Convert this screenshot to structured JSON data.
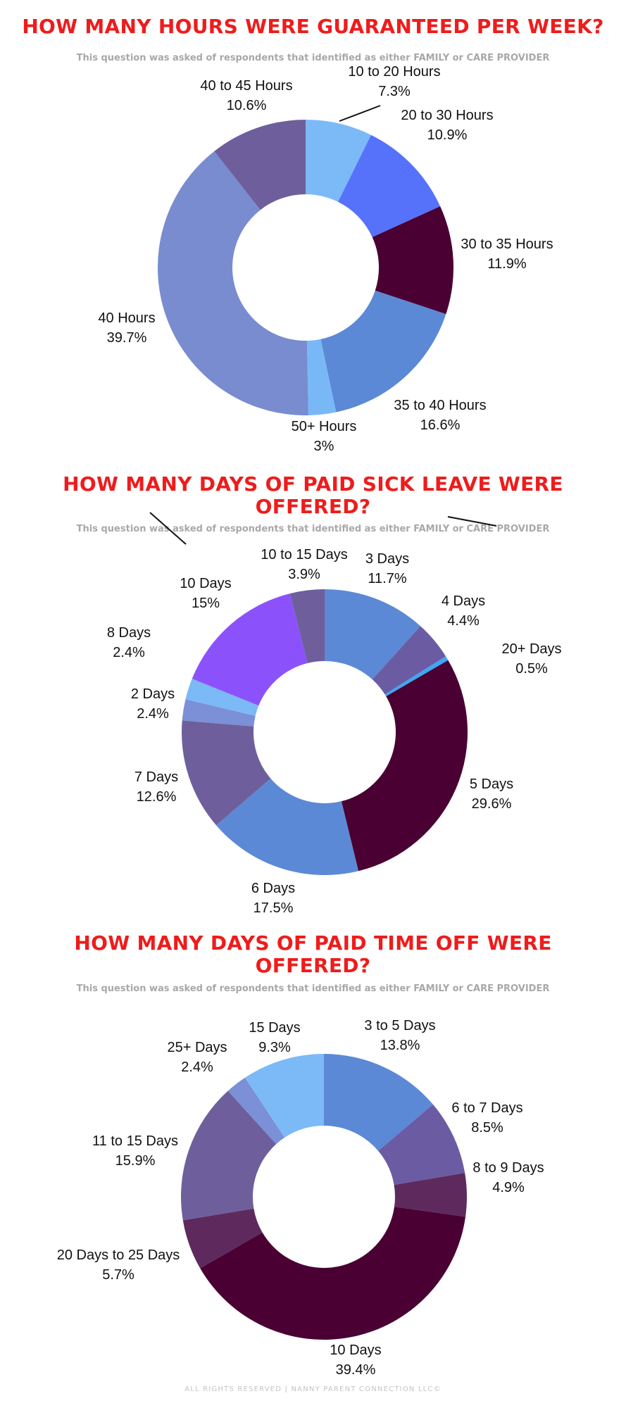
{
  "chart_data": [
    {
      "type": "pie",
      "donut": true,
      "title": "HOW MANY HOURS WERE GUARANTEED PER WEEK?",
      "subtitle": "This question was asked of respondents that identified as either FAMILY or CARE PROVIDER",
      "slices": [
        {
          "label": "10 to 20 Hours",
          "value": 7.3,
          "display": "7.3%",
          "color": "#7cb9f7"
        },
        {
          "label": "20 to 30 Hours",
          "value": 10.9,
          "display": "10.9%",
          "color": "#5672fb"
        },
        {
          "label": "30 to 35 Hours",
          "value": 11.9,
          "display": "11.9%",
          "color": "#4a0033"
        },
        {
          "label": "35 to 40 Hours",
          "value": 16.6,
          "display": "16.6%",
          "color": "#5b89d6"
        },
        {
          "label": "50+ Hours",
          "value": 3,
          "display": "3%",
          "color": "#78b8f6"
        },
        {
          "label": "40 Hours",
          "value": 39.7,
          "display": "39.7%",
          "color": "#788ccf"
        },
        {
          "label": "40 to 45 Hours",
          "value": 10.6,
          "display": "10.6%",
          "color": "#6e5f9c"
        }
      ]
    },
    {
      "type": "pie",
      "donut": true,
      "title": "HOW MANY DAYS OF PAID SICK LEAVE WERE OFFERED?",
      "subtitle": "This question was asked of respondents that identified as either FAMILY or CARE PROVIDER",
      "slices": [
        {
          "label": "3 Days",
          "value": 11.7,
          "display": "11.7%",
          "color": "#5b89d6"
        },
        {
          "label": "4 Days",
          "value": 4.4,
          "display": "4.4%",
          "color": "#6b5ba3"
        },
        {
          "label": "20+ Days",
          "value": 0.5,
          "display": "0.5%",
          "color": "#3ea6f5"
        },
        {
          "label": "5 Days",
          "value": 29.6,
          "display": "29.6%",
          "color": "#4a0033"
        },
        {
          "label": "6 Days",
          "value": 17.5,
          "display": "17.5%",
          "color": "#5b89d6"
        },
        {
          "label": "7 Days",
          "value": 12.6,
          "display": "12.6%",
          "color": "#6e5f9c"
        },
        {
          "label": "2 Days",
          "value": 2.4,
          "display": "2.4%",
          "color": "#7b90d6"
        },
        {
          "label": "8 Days",
          "value": 2.4,
          "display": "2.4%",
          "color": "#7cb9f7"
        },
        {
          "label": "10 Days",
          "value": 15,
          "display": "15%",
          "color": "#8b52fb"
        },
        {
          "label": "10 to 15 Days",
          "value": 3.9,
          "display": "3.9%",
          "color": "#6e5f9c"
        }
      ]
    },
    {
      "type": "pie",
      "donut": true,
      "title": "HOW MANY DAYS OF PAID TIME OFF WERE OFFERED?",
      "subtitle": "This question was asked of respondents that identified as either FAMILY or CARE PROVIDER",
      "slices": [
        {
          "label": "3 to 5 Days",
          "value": 13.8,
          "display": "13.8%",
          "color": "#5b89d6"
        },
        {
          "label": "6 to 7 Days",
          "value": 8.5,
          "display": "8.5%",
          "color": "#6b5ba3"
        },
        {
          "label": "8 to 9 Days",
          "value": 4.9,
          "display": "4.9%",
          "color": "#5e2a5e"
        },
        {
          "label": "10 Days",
          "value": 39.4,
          "display": "39.4%",
          "color": "#4a0033"
        },
        {
          "label": "20 Days to 25 Days",
          "value": 5.7,
          "display": "5.7%",
          "color": "#5e2a5e"
        },
        {
          "label": "11 to 15 Days",
          "value": 15.9,
          "display": "15.9%",
          "color": "#6e5f9c"
        },
        {
          "label": "25+ Days",
          "value": 2.4,
          "display": "2.4%",
          "color": "#7b90d6"
        },
        {
          "label": "15 Days",
          "value": 9.3,
          "display": "9.3%",
          "color": "#7cb9f7"
        }
      ]
    }
  ],
  "footer": "ALL RIGHTS RESERVED | NANNY PARENT CONNECTION LLC©"
}
